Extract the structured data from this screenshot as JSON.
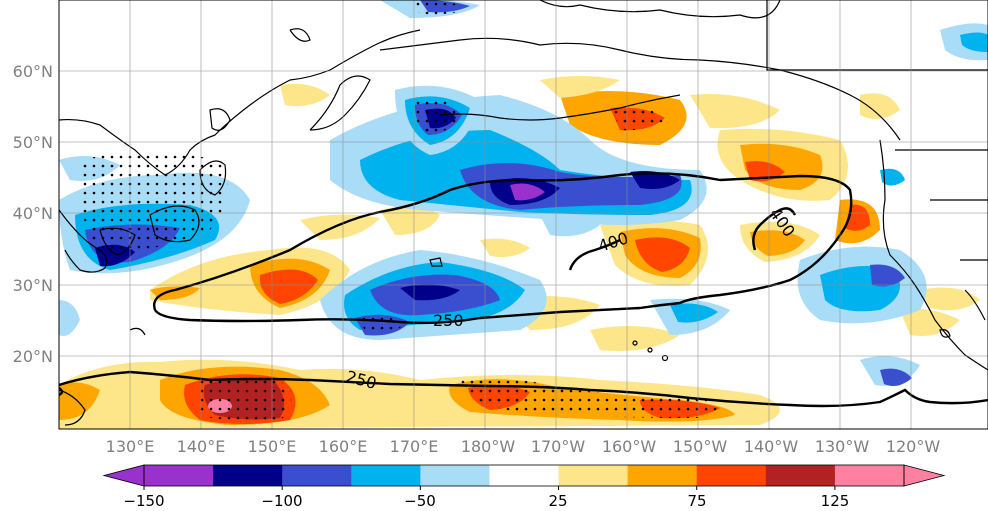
{
  "chart_data": {
    "type": "heatmap",
    "map_extent": {
      "lon": [
        "121°E",
        "115°W"
      ],
      "lat": [
        "10°N",
        "70°N"
      ]
    },
    "lat_ticks": [
      "20°N",
      "30°N",
      "40°N",
      "50°N",
      "60°N"
    ],
    "lon_ticks": [
      "130°E",
      "140°E",
      "150°E",
      "160°E",
      "170°E",
      "180°W",
      "170°W",
      "160°W",
      "150°W",
      "140°W",
      "130°W",
      "120°W"
    ],
    "colorbar": {
      "levels": [
        -150,
        -125,
        -100,
        -75,
        -50,
        -25,
        25,
        50,
        75,
        100,
        125,
        150
      ],
      "tick_labels": [
        "−150",
        "−100",
        "−50",
        "25",
        "75",
        "125"
      ],
      "colors": [
        "#9932cc",
        "#00008b",
        "#3a4fcf",
        "#00b2ee",
        "#a9dcf7",
        "#ffffff",
        "#fde68a",
        "#ffa500",
        "#ff4500",
        "#b22222",
        "#ff80a0"
      ],
      "extend": "both"
    },
    "contour_labels": [
      "250",
      "250",
      "400",
      "400"
    ],
    "grid": true,
    "stippling": "significance dots"
  }
}
